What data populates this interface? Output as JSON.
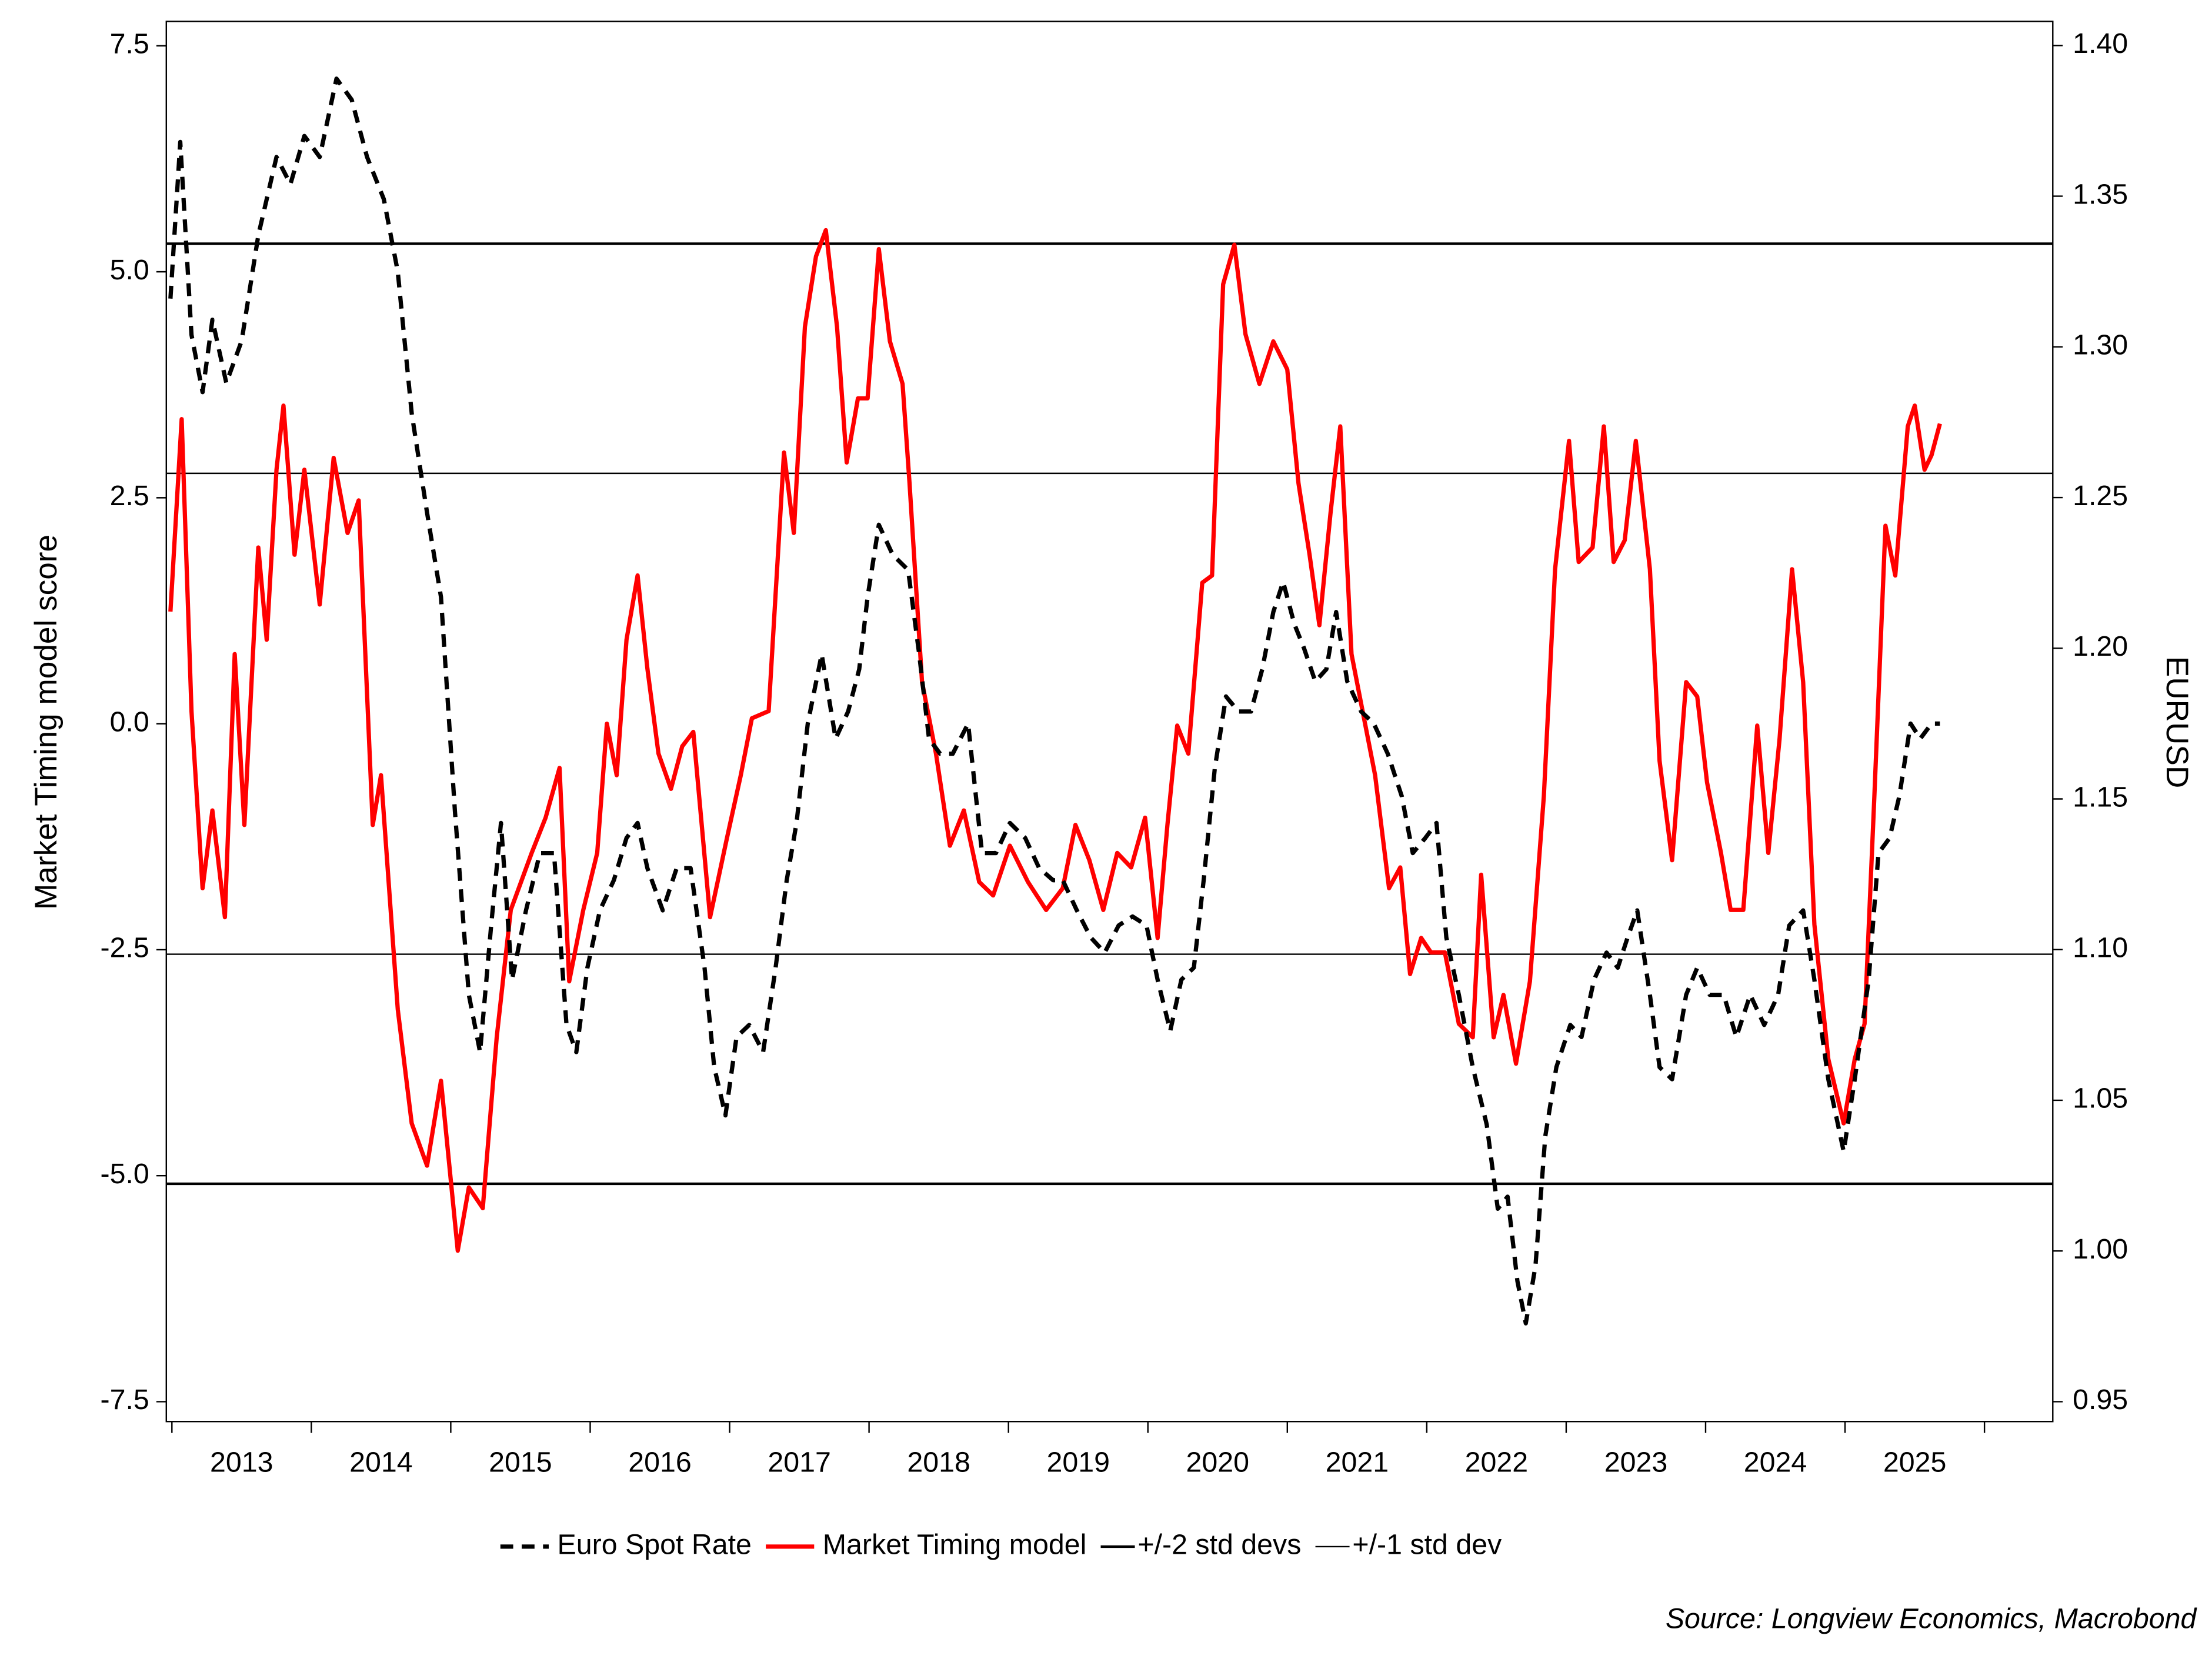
{
  "chart_data": {
    "type": "line",
    "ylabel": "Market Timing model score",
    "y2label": "EURUSD",
    "source": "Source: Longview Economics, Macrobond",
    "xlim": [
      2012.96,
      2026.49
    ],
    "xticks": [
      {
        "value": 2013.5,
        "label": "2013"
      },
      {
        "value": 2014.5,
        "label": "2014"
      },
      {
        "value": 2015.5,
        "label": "2015"
      },
      {
        "value": 2016.5,
        "label": "2016"
      },
      {
        "value": 2017.5,
        "label": "2017"
      },
      {
        "value": 2018.5,
        "label": "2018"
      },
      {
        "value": 2019.5,
        "label": "2019"
      },
      {
        "value": 2020.5,
        "label": "2020"
      },
      {
        "value": 2021.5,
        "label": "2021"
      },
      {
        "value": 2022.5,
        "label": "2022"
      },
      {
        "value": 2023.5,
        "label": "2023"
      },
      {
        "value": 2024.5,
        "label": "2024"
      },
      {
        "value": 2025.5,
        "label": "2025"
      }
    ],
    "xminorticks": [
      2013,
      2014,
      2015,
      2016,
      2017,
      2018,
      2019,
      2020,
      2021,
      2022,
      2023,
      2024,
      2025,
      2026
    ],
    "ylim": [
      -7.72,
      7.77
    ],
    "yticks": [
      {
        "value": 7.5,
        "label": "7.5"
      },
      {
        "value": 5,
        "label": "5.0"
      },
      2.5,
      {
        "value": 0,
        "label": "0.0"
      },
      -2.5,
      {
        "value": -5,
        "label": "-5.0"
      },
      -7.5
    ],
    "y2lim": [
      0.9434,
      1.408
    ],
    "y2ticks": [
      {
        "value": 1.4,
        "label": "1.40"
      },
      1.35,
      {
        "value": 1.3,
        "label": "1.30"
      },
      1.25,
      {
        "value": 1.2,
        "label": "1.20"
      },
      1.15,
      {
        "value": 1.1,
        "label": "1.10"
      },
      1.05,
      {
        "value": 1.0,
        "label": "1.00"
      },
      0.95
    ],
    "series": [
      {
        "name": "Euro Spot Rate",
        "color": "#000000",
        "dash": true,
        "axis": "y2",
        "x": [
          2012.99,
          2013.06,
          2013.14,
          2013.22,
          2013.29,
          2013.39,
          2013.5,
          2013.62,
          2013.75,
          2013.85,
          2013.95,
          2014.06,
          2014.18,
          2014.29,
          2014.4,
          2014.52,
          2014.62,
          2014.72,
          2014.83,
          2014.93,
          2015.03,
          2015.13,
          2015.21,
          2015.29,
          2015.36,
          2015.44,
          2015.54,
          2015.64,
          2015.74,
          2015.83,
          2015.9,
          2015.98,
          2016.07,
          2016.17,
          2016.26,
          2016.34,
          2016.41,
          2016.52,
          2016.62,
          2016.72,
          2016.82,
          2016.89,
          2016.97,
          2017.05,
          2017.14,
          2017.24,
          2017.33,
          2017.41,
          2017.48,
          2017.56,
          2017.66,
          2017.76,
          2017.85,
          2017.93,
          2017.99,
          2018.07,
          2018.17,
          2018.28,
          2018.36,
          2018.43,
          2018.51,
          2018.6,
          2018.71,
          2018.81,
          2018.91,
          2019.01,
          2019.12,
          2019.22,
          2019.32,
          2019.39,
          2019.49,
          2019.59,
          2019.69,
          2019.79,
          2019.89,
          2019.99,
          2020.07,
          2020.16,
          2020.24,
          2020.33,
          2020.4,
          2020.48,
          2020.56,
          2020.65,
          2020.74,
          2020.82,
          2020.9,
          2020.97,
          2021.05,
          2021.12,
          2021.2,
          2021.28,
          2021.35,
          2021.43,
          2021.53,
          2021.62,
          2021.72,
          2021.82,
          2021.9,
          2021.99,
          2022.07,
          2022.14,
          2022.23,
          2022.33,
          2022.43,
          2022.51,
          2022.58,
          2022.65,
          2022.71,
          2022.78,
          2022.85,
          2022.93,
          2023.03,
          2023.11,
          2023.2,
          2023.29,
          2023.37,
          2023.44,
          2023.51,
          2023.6,
          2023.67,
          2023.76,
          2023.86,
          2023.94,
          2024.03,
          2024.13,
          2024.22,
          2024.32,
          2024.42,
          2024.52,
          2024.6,
          2024.7,
          2024.78,
          2024.88,
          2024.99,
          2025.07,
          2025.17,
          2025.24,
          2025.32,
          2025.39,
          2025.47,
          2025.54,
          2025.62,
          2025.68
        ],
        "values": [
          1.316,
          1.368,
          1.304,
          1.285,
          1.309,
          1.288,
          1.302,
          1.337,
          1.363,
          1.354,
          1.37,
          1.363,
          1.389,
          1.382,
          1.363,
          1.349,
          1.325,
          1.278,
          1.245,
          1.217,
          1.146,
          1.085,
          1.066,
          1.108,
          1.142,
          1.09,
          1.113,
          1.132,
          1.132,
          1.075,
          1.066,
          1.094,
          1.113,
          1.123,
          1.137,
          1.142,
          1.127,
          1.113,
          1.127,
          1.127,
          1.094,
          1.061,
          1.045,
          1.071,
          1.075,
          1.066,
          1.094,
          1.123,
          1.142,
          1.175,
          1.198,
          1.17,
          1.179,
          1.193,
          1.217,
          1.241,
          1.231,
          1.226,
          1.198,
          1.17,
          1.165,
          1.165,
          1.175,
          1.132,
          1.132,
          1.142,
          1.137,
          1.127,
          1.123,
          1.123,
          1.113,
          1.104,
          1.099,
          1.108,
          1.111,
          1.108,
          1.09,
          1.073,
          1.09,
          1.094,
          1.123,
          1.16,
          1.184,
          1.179,
          1.179,
          1.193,
          1.212,
          1.222,
          1.208,
          1.2,
          1.189,
          1.193,
          1.212,
          1.189,
          1.179,
          1.175,
          1.165,
          1.151,
          1.132,
          1.137,
          1.142,
          1.104,
          1.085,
          1.061,
          1.042,
          1.014,
          1.018,
          0.99,
          0.976,
          0.995,
          1.038,
          1.061,
          1.075,
          1.071,
          1.09,
          1.099,
          1.094,
          1.104,
          1.113,
          1.085,
          1.061,
          1.057,
          1.085,
          1.094,
          1.085,
          1.085,
          1.071,
          1.085,
          1.075,
          1.085,
          1.108,
          1.113,
          1.09,
          1.057,
          1.033,
          1.057,
          1.09,
          1.132,
          1.137,
          1.151,
          1.175,
          1.17,
          1.175,
          1.175
        ]
      },
      {
        "name": "Market Timing model",
        "color": "#ff0000",
        "dash": false,
        "axis": "y",
        "x": [
          2012.99,
          2013.07,
          2013.14,
          2013.22,
          2013.29,
          2013.38,
          2013.45,
          2013.52,
          2013.62,
          2013.68,
          2013.75,
          2013.8,
          2013.88,
          2013.95,
          2014.06,
          2014.16,
          2014.26,
          2014.34,
          2014.44,
          2014.5,
          2014.62,
          2014.72,
          2014.83,
          2014.93,
          2015.05,
          2015.13,
          2015.23,
          2015.33,
          2015.43,
          2015.58,
          2015.68,
          2015.78,
          2015.85,
          2015.95,
          2016.05,
          2016.12,
          2016.19,
          2016.26,
          2016.34,
          2016.41,
          2016.49,
          2016.58,
          2016.66,
          2016.74,
          2016.86,
          2016.98,
          2017.08,
          2017.16,
          2017.28,
          2017.39,
          2017.46,
          2017.54,
          2017.62,
          2017.69,
          2017.77,
          2017.84,
          2017.92,
          2017.99,
          2018.07,
          2018.15,
          2018.24,
          2018.29,
          2018.38,
          2018.48,
          2018.58,
          2018.68,
          2018.79,
          2018.89,
          2019.01,
          2019.14,
          2019.27,
          2019.39,
          2019.48,
          2019.58,
          2019.68,
          2019.78,
          2019.88,
          2019.98,
          2020.07,
          2020.14,
          2020.21,
          2020.29,
          2020.39,
          2020.46,
          2020.54,
          2020.62,
          2020.7,
          2020.8,
          2020.9,
          2021.0,
          2021.08,
          2021.16,
          2021.23,
          2021.31,
          2021.38,
          2021.46,
          2021.54,
          2021.63,
          2021.73,
          2021.81,
          2021.88,
          2021.96,
          2022.03,
          2022.13,
          2022.23,
          2022.33,
          2022.39,
          2022.48,
          2022.55,
          2022.64,
          2022.74,
          2022.84,
          2022.92,
          2023.02,
          2023.09,
          2023.19,
          2023.27,
          2023.34,
          2023.42,
          2023.5,
          2023.6,
          2023.67,
          2023.76,
          2023.86,
          2023.94,
          2024.01,
          2024.11,
          2024.18,
          2024.27,
          2024.37,
          2024.45,
          2024.53,
          2024.62,
          2024.7,
          2024.78,
          2024.88,
          2024.99,
          2025.07,
          2025.14,
          2025.21,
          2025.29,
          2025.36,
          2025.45,
          2025.5,
          2025.57,
          2025.62,
          2025.68
        ],
        "values": [
          1.24,
          3.37,
          0.14,
          -1.82,
          -0.96,
          -2.14,
          0.77,
          -1.12,
          1.95,
          0.93,
          2.81,
          3.52,
          1.87,
          2.81,
          1.32,
          2.94,
          2.11,
          2.47,
          -1.12,
          -0.57,
          -3.16,
          -4.42,
          -4.89,
          -3.95,
          -5.83,
          -5.13,
          -5.36,
          -3.47,
          -2.06,
          -1.43,
          -1.04,
          -0.49,
          -2.85,
          -2.06,
          -1.43,
          0.0,
          -0.57,
          0.93,
          1.64,
          0.61,
          -0.33,
          -0.72,
          -0.25,
          -0.09,
          -2.14,
          -1.27,
          -0.57,
          0.06,
          0.14,
          3.0,
          2.11,
          4.39,
          5.17,
          5.46,
          4.39,
          2.89,
          3.6,
          3.6,
          5.25,
          4.23,
          3.76,
          2.66,
          0.46,
          -0.33,
          -1.35,
          -0.96,
          -1.75,
          -1.9,
          -1.35,
          -1.75,
          -2.06,
          -1.82,
          -1.12,
          -1.51,
          -2.06,
          -1.43,
          -1.59,
          -1.04,
          -2.37,
          -1.12,
          -0.02,
          -0.33,
          1.56,
          1.64,
          4.86,
          5.3,
          4.31,
          3.76,
          4.23,
          3.92,
          2.66,
          1.87,
          1.09,
          2.34,
          3.29,
          0.77,
          0.14,
          -0.57,
          -1.82,
          -1.59,
          -2.77,
          -2.37,
          -2.53,
          -2.53,
          -3.32,
          -3.47,
          -1.67,
          -3.47,
          -3.0,
          -3.76,
          -2.85,
          -0.8,
          1.71,
          3.13,
          1.79,
          1.95,
          3.29,
          1.79,
          2.03,
          3.13,
          1.71,
          -0.41,
          -1.51,
          0.46,
          0.3,
          -0.65,
          -1.43,
          -2.06,
          -2.06,
          -0.02,
          -1.43,
          -0.17,
          1.71,
          0.46,
          -2.22,
          -3.71,
          -4.42,
          -3.71,
          -3.32,
          -0.8,
          2.19,
          1.64,
          3.29,
          3.52,
          2.81,
          2.97,
          3.32
        ]
      }
    ],
    "reference_lines": [
      {
        "name": "+/-2 std devs",
        "color": "#000000",
        "values": [
          5.31,
          -5.09
        ]
      },
      {
        "name": "+/-1 std dev",
        "color": "#000000",
        "values": [
          2.77,
          -2.55
        ]
      }
    ]
  }
}
